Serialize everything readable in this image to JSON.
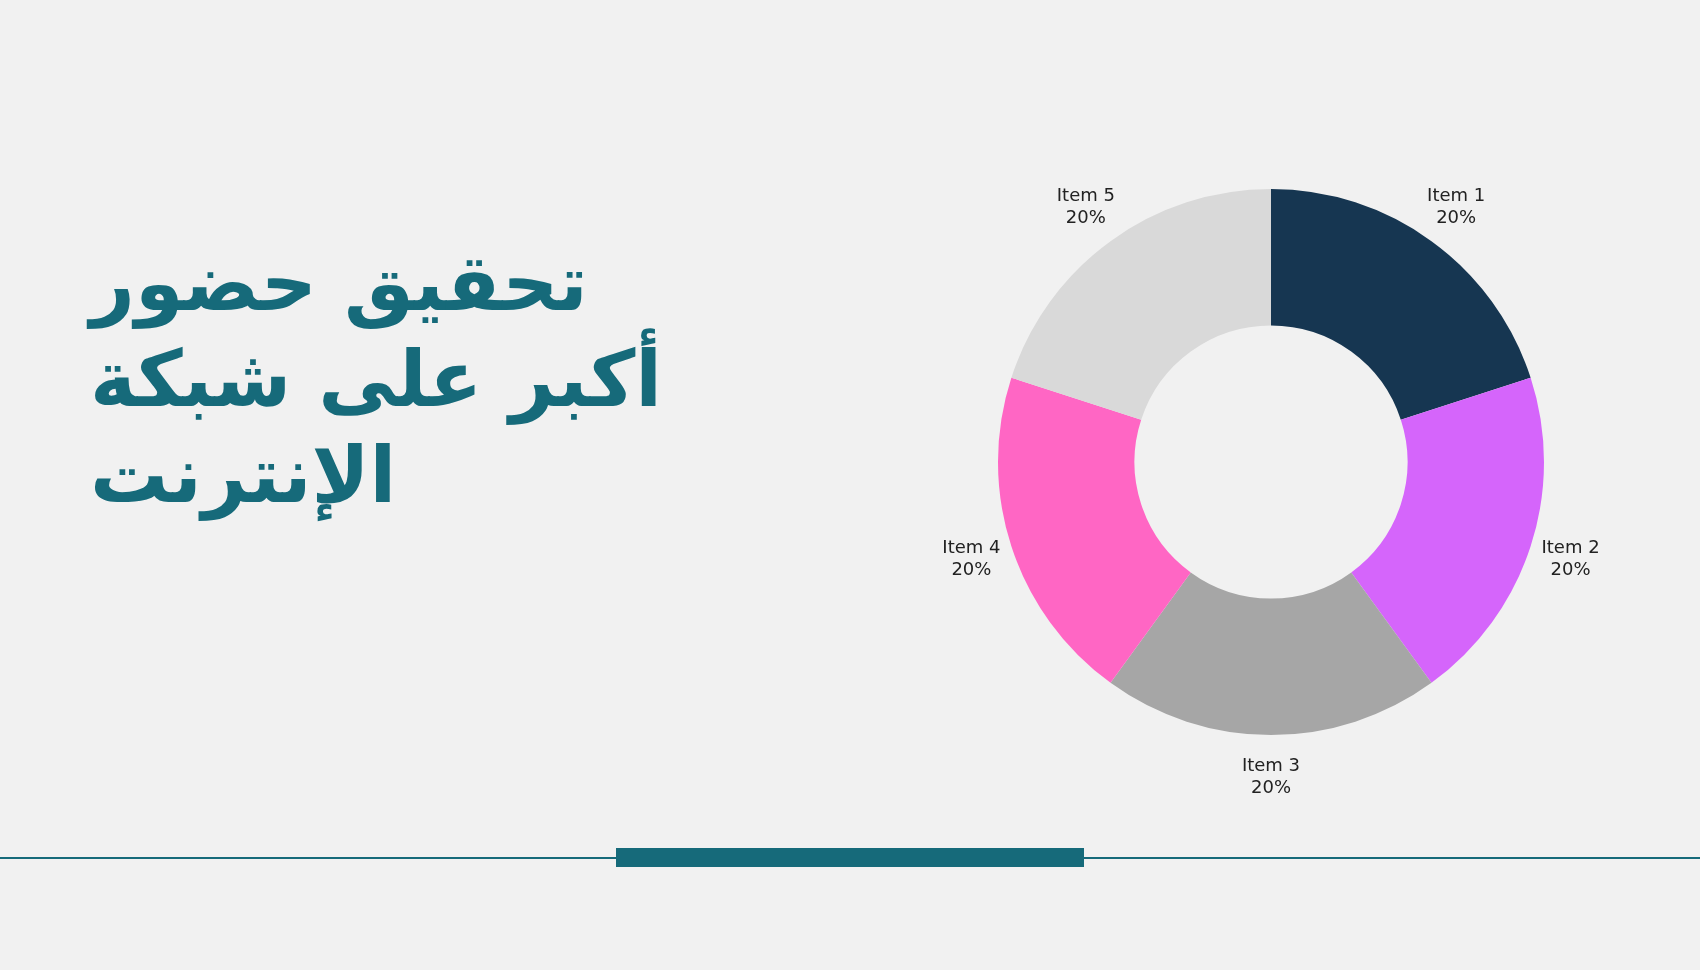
{
  "chart_data": {
    "type": "donut",
    "title": "تحقيق حضور أكبر على شبكة الإنترنت",
    "categories": [
      "Item 1",
      "Item 2",
      "Item 3",
      "Item 4",
      "Item 5"
    ],
    "values": [
      20,
      20,
      20,
      20,
      20
    ],
    "value_labels": [
      "20%",
      "20%",
      "20%",
      "20%",
      "20%"
    ],
    "colors": [
      "#163651",
      "#d565fb",
      "#a6a6a6",
      "#ff66c4",
      "#d9d9d9"
    ],
    "legend": false
  }
}
